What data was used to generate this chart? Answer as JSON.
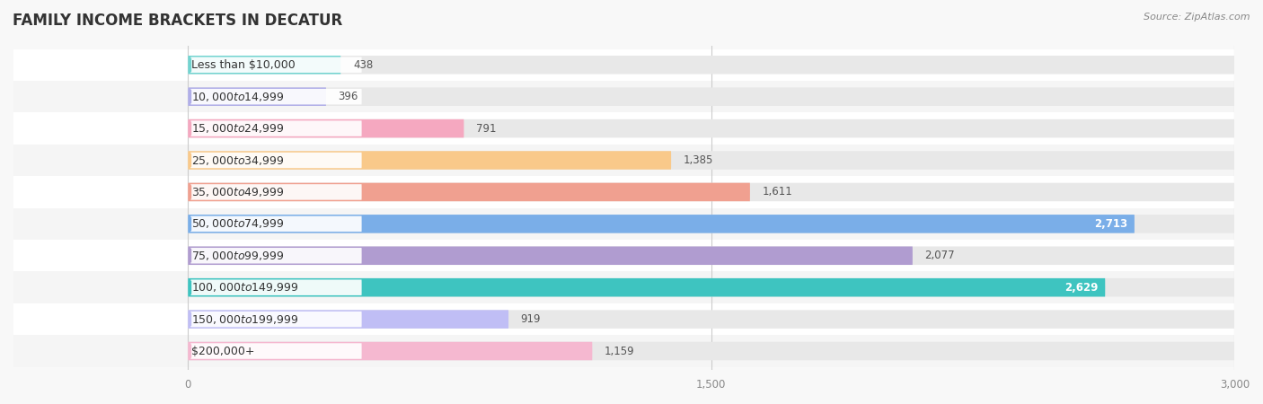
{
  "title": "FAMILY INCOME BRACKETS IN DECATUR",
  "source": "Source: ZipAtlas.com",
  "categories": [
    "Less than $10,000",
    "$10,000 to $14,999",
    "$15,000 to $24,999",
    "$25,000 to $34,999",
    "$35,000 to $49,999",
    "$50,000 to $74,999",
    "$75,000 to $99,999",
    "$100,000 to $149,999",
    "$150,000 to $199,999",
    "$200,000+"
  ],
  "values": [
    438,
    396,
    791,
    1385,
    1611,
    2713,
    2077,
    2629,
    919,
    1159
  ],
  "bar_colors": [
    "#72d4d0",
    "#b0aee8",
    "#f5a8c0",
    "#f9c98a",
    "#f0a090",
    "#7aaee8",
    "#b09cd0",
    "#3ec4c0",
    "#c0bef5",
    "#f5b8d0"
  ],
  "xlim_data": [
    0,
    3000
  ],
  "xlim_plot": [
    -500,
    3000
  ],
  "xticks": [
    0,
    1500,
    3000
  ],
  "background_color": "#f8f8f8",
  "bar_bg_color": "#e8e8e8",
  "row_colors": [
    "#ffffff",
    "#f5f5f5"
  ],
  "title_fontsize": 12,
  "source_fontsize": 8,
  "label_fontsize": 9,
  "value_fontsize": 8.5,
  "bar_height": 0.58,
  "figsize": [
    14.06,
    4.5
  ],
  "dpi": 100
}
